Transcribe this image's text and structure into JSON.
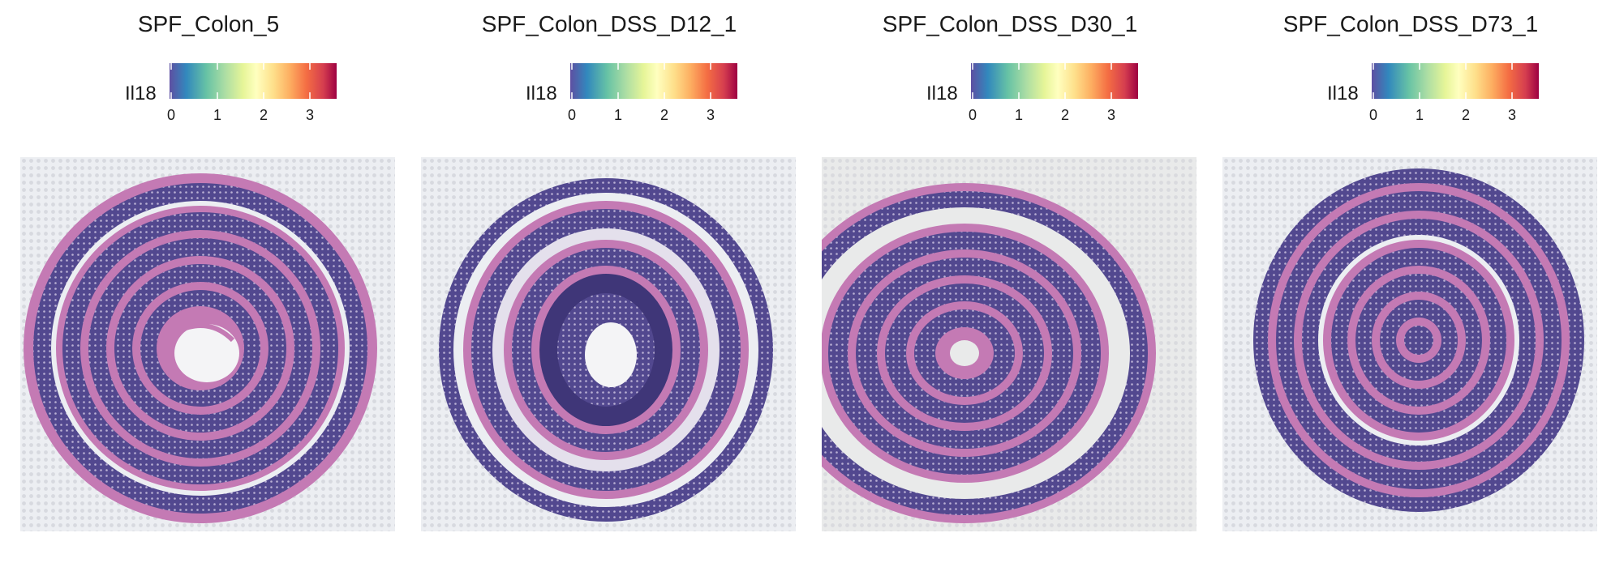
{
  "legend": {
    "label": "Il18",
    "ticks": [
      "0",
      "1",
      "2",
      "3"
    ],
    "palette": [
      "#5E4FA2",
      "#3288BD",
      "#66C2A5",
      "#ABDDA4",
      "#E6F598",
      "#FFFFBF",
      "#FEE08B",
      "#FDAE61",
      "#F46D43",
      "#D53E4F",
      "#9E0142"
    ]
  },
  "colors": {
    "background": "#ffffff",
    "slide": "#eceef2",
    "spot_grid": "#c6c7cf",
    "muscle": "#c47ab4",
    "mucosa": "#52488f",
    "crypt_dot": "#b9b0d4"
  },
  "panels": [
    {
      "title": "SPF_Colon_5"
    },
    {
      "title": "SPF_Colon_DSS_D12_1"
    },
    {
      "title": "SPF_Colon_DSS_D30_1"
    },
    {
      "title": "SPF_Colon_DSS_D73_1"
    }
  ]
}
